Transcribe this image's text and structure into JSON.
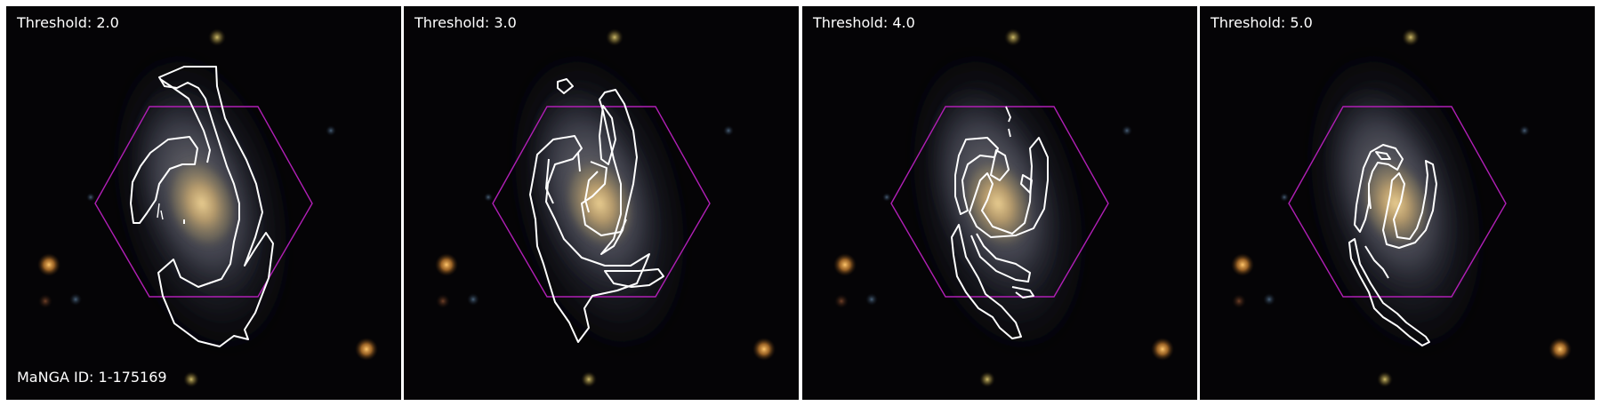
{
  "figure": {
    "panels": [
      {
        "label": "Threshold: 2.0"
      },
      {
        "label": "Threshold: 3.0"
      },
      {
        "label": "Threshold: 4.0"
      },
      {
        "label": "Threshold: 5.0"
      }
    ],
    "manga_id_label": "MaNGA ID: 1-175169"
  },
  "colors": {
    "background": "#050406",
    "hexagon": "#b01fb5",
    "contour": "#ffffff",
    "label_text": "#ffffff"
  },
  "icons": [
    "galaxy-image",
    "ifu-hexagon",
    "contour-lines"
  ]
}
